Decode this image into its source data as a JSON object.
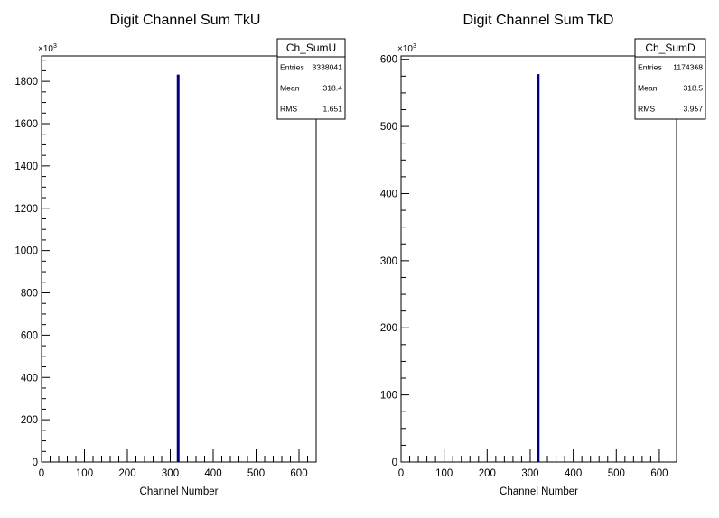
{
  "chart_data": [
    {
      "type": "bar",
      "title": "Digit Channel Sum TkU",
      "xlabel": "Channel Number",
      "ylabel": "",
      "y_multiplier": "×10",
      "y_multiplier_exp": "3",
      "xlim": [
        0,
        640
      ],
      "ylim": [
        0,
        1920
      ],
      "xticks": [
        0,
        100,
        200,
        300,
        400,
        500,
        600
      ],
      "yticks": [
        0,
        200,
        400,
        600,
        800,
        1000,
        1200,
        1400,
        1600,
        1800
      ],
      "bars": [
        {
          "x": 318.4,
          "value": 1832
        }
      ],
      "color": "#000080",
      "stats": {
        "name": "Ch_SumU",
        "rows": [
          {
            "label": "Entries",
            "value": "3338041"
          },
          {
            "label": "Mean",
            "value": "318.4"
          },
          {
            "label": "RMS",
            "value": "1.651"
          }
        ]
      }
    },
    {
      "type": "bar",
      "title": "Digit Channel Sum TkD",
      "xlabel": "Channel Number",
      "ylabel": "",
      "y_multiplier": "×10",
      "y_multiplier_exp": "3",
      "xlim": [
        0,
        640
      ],
      "ylim": [
        0,
        605
      ],
      "xticks": [
        0,
        100,
        200,
        300,
        400,
        500,
        600
      ],
      "yticks": [
        0,
        100,
        200,
        300,
        400,
        500,
        600
      ],
      "bars": [
        {
          "x": 318.5,
          "value": 578
        }
      ],
      "color": "#000080",
      "stats": {
        "name": "Ch_SumD",
        "rows": [
          {
            "label": "Entries",
            "value": "1174368"
          },
          {
            "label": "Mean",
            "value": "318.5"
          },
          {
            "label": "RMS",
            "value": "3.957"
          }
        ]
      }
    }
  ]
}
